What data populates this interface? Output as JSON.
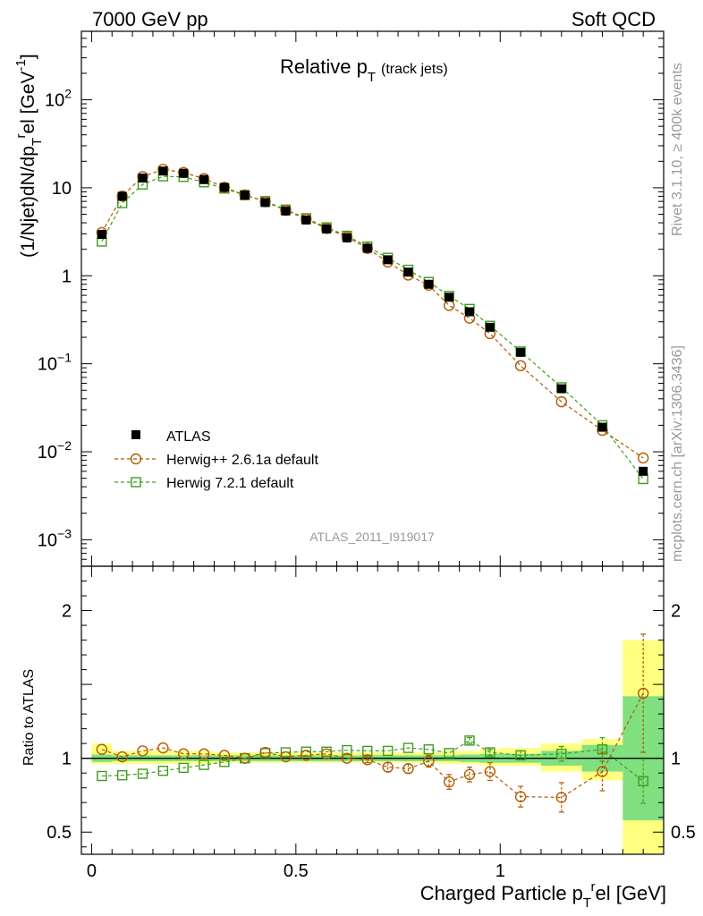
{
  "header": {
    "left": "7000 GeV pp",
    "right": "Soft QCD",
    "side_rivet": "Rivet 3.1.10, ≥ 400k events",
    "side_mcplots": "mcplots.cern.ch [arXiv:1306.3436]"
  },
  "chart_data": [
    {
      "type": "scatter",
      "title": "Relative p_T (track jets)",
      "title_main": "Relative p",
      "title_sub": "T",
      "title_suffix": "(track jets)",
      "analysis_id": "ATLAS_2011_I919017",
      "ylabel": "(1/Njet)dN/dp_T^rel [GeV^-1]",
      "ylabel_parts": {
        "a": "(1/Njet)dN/dp",
        "b": "T",
        "c": "r",
        "d": "el [GeV",
        "e": "-1",
        "f": "]"
      },
      "yscale": "log",
      "ylim": [
        0.0005,
        600
      ],
      "y_ticks": [
        {
          "value": 0.001,
          "base": "10",
          "exp": "−3"
        },
        {
          "value": 0.01,
          "base": "10",
          "exp": "−2"
        },
        {
          "value": 0.1,
          "base": "10",
          "exp": "−1"
        },
        {
          "value": 1,
          "base": "1",
          "exp": ""
        },
        {
          "value": 10,
          "base": "10",
          "exp": ""
        },
        {
          "value": 100,
          "base": "10",
          "exp": "2"
        }
      ],
      "xlim": [
        -0.025,
        1.4
      ],
      "x": [
        0.025,
        0.075,
        0.125,
        0.175,
        0.225,
        0.275,
        0.325,
        0.375,
        0.425,
        0.475,
        0.525,
        0.575,
        0.625,
        0.675,
        0.725,
        0.775,
        0.825,
        0.875,
        0.925,
        0.975,
        1.05,
        1.15,
        1.25,
        1.35
      ],
      "legend_position": "bottom-left",
      "series": [
        {
          "name": "ATLAS",
          "marker": "filled-square",
          "color": "#000000",
          "values": [
            2.95,
            8.0,
            12.9,
            15.5,
            14.6,
            12.4,
            10.1,
            8.25,
            6.8,
            5.45,
            4.3,
            3.4,
            2.7,
            2.05,
            1.52,
            1.1,
            0.8,
            0.57,
            0.39,
            0.26,
            0.135,
            0.052,
            0.019,
            0.006
          ]
        },
        {
          "name": "Herwig++ 2.6.1a default",
          "marker": "open-circle",
          "color": "#b35a00",
          "values": [
            3.1,
            8.05,
            13.4,
            16.2,
            14.9,
            12.7,
            10.1,
            8.3,
            6.95,
            5.55,
            4.4,
            3.45,
            2.75,
            2.05,
            1.43,
            1.02,
            0.78,
            0.46,
            0.33,
            0.22,
            0.095,
            0.037,
            0.0175,
            0.0085
          ]
        },
        {
          "name": "Herwig 7.2.1 default",
          "marker": "open-square",
          "color": "#3f9d1d",
          "values": [
            2.45,
            6.7,
            10.9,
            13.5,
            13.3,
            11.55,
            9.8,
            8.25,
            7.05,
            5.65,
            4.5,
            3.55,
            2.85,
            2.15,
            1.6,
            1.17,
            0.85,
            0.59,
            0.42,
            0.27,
            0.138,
            0.054,
            0.02,
            0.0049
          ]
        }
      ]
    },
    {
      "type": "scatter",
      "xlabel": "Charged Particle p_T^rel [GeV]",
      "xlabel_parts": {
        "a": "Charged Particle p",
        "b": "T",
        "c": "r",
        "d": "el [GeV]"
      },
      "ylabel": "Ratio to ATLAS",
      "ylim": [
        0.35,
        2.3
      ],
      "y_ticks": [
        "0.5",
        "1",
        "2"
      ],
      "x_ticks": [
        "0",
        "0.5",
        "1"
      ],
      "xlim": [
        -0.025,
        1.4
      ],
      "bins": [
        [
          0,
          0.05
        ],
        [
          0.05,
          0.1
        ],
        [
          0.1,
          0.15
        ],
        [
          0.15,
          0.2
        ],
        [
          0.2,
          0.25
        ],
        [
          0.25,
          0.3
        ],
        [
          0.3,
          0.35
        ],
        [
          0.35,
          0.4
        ],
        [
          0.4,
          0.45
        ],
        [
          0.45,
          0.5
        ],
        [
          0.5,
          0.55
        ],
        [
          0.55,
          0.6
        ],
        [
          0.6,
          0.65
        ],
        [
          0.65,
          0.7
        ],
        [
          0.7,
          0.75
        ],
        [
          0.75,
          0.8
        ],
        [
          0.8,
          0.85
        ],
        [
          0.85,
          0.9
        ],
        [
          0.9,
          0.95
        ],
        [
          0.95,
          1.0
        ],
        [
          1.0,
          1.1
        ],
        [
          1.1,
          1.2
        ],
        [
          1.2,
          1.3
        ],
        [
          1.3,
          1.4
        ]
      ],
      "band_green": [
        0.025,
        0.02,
        0.02,
        0.02,
        0.02,
        0.02,
        0.02,
        0.02,
        0.02,
        0.02,
        0.02,
        0.02,
        0.02,
        0.02,
        0.02,
        0.02,
        0.02,
        0.02,
        0.025,
        0.03,
        0.03,
        0.05,
        0.09,
        0.42
      ],
      "band_yellow": [
        0.1,
        0.05,
        0.05,
        0.05,
        0.05,
        0.05,
        0.04,
        0.04,
        0.04,
        0.04,
        0.04,
        0.04,
        0.04,
        0.04,
        0.04,
        0.04,
        0.04,
        0.05,
        0.05,
        0.06,
        0.07,
        0.1,
        0.13,
        0.8
      ],
      "band_yellow_low": [
        0.04,
        0.04,
        0.04,
        0.04,
        0.04,
        0.04,
        0.03,
        0.03,
        0.03,
        0.03,
        0.03,
        0.03,
        0.03,
        0.03,
        0.03,
        0.03,
        0.03,
        0.04,
        0.04,
        0.05,
        0.05,
        0.09,
        0.15,
        0.7
      ],
      "series": [
        {
          "name": "Herwig++ 2.6.1a default",
          "color": "#b35a00",
          "values": [
            1.06,
            1.01,
            1.05,
            1.07,
            1.03,
            1.03,
            1.02,
            1.0,
            1.04,
            1.01,
            1.02,
            1.03,
            1.0,
            0.99,
            0.94,
            0.93,
            0.98,
            0.84,
            0.89,
            0.91,
            0.74,
            0.735,
            0.91,
            1.44
          ],
          "err": [
            0.01,
            0.01,
            0.01,
            0.01,
            0.01,
            0.01,
            0.01,
            0.01,
            0.01,
            0.01,
            0.01,
            0.01,
            0.01,
            0.02,
            0.03,
            0.03,
            0.04,
            0.05,
            0.05,
            0.06,
            0.07,
            0.1,
            0.13,
            0.4
          ]
        },
        {
          "name": "Herwig 7.2.1 default",
          "color": "#3f9d1d",
          "values": [
            0.88,
            0.885,
            0.895,
            0.915,
            0.935,
            0.955,
            0.975,
            1.0,
            1.035,
            1.04,
            1.045,
            1.045,
            1.055,
            1.05,
            1.05,
            1.07,
            1.06,
            1.035,
            1.12,
            1.04,
            1.02,
            1.03,
            1.06,
            0.845
          ],
          "err": [
            0.01,
            0.01,
            0.01,
            0.01,
            0.01,
            0.01,
            0.01,
            0.01,
            0.01,
            0.01,
            0.01,
            0.01,
            0.01,
            0.01,
            0.01,
            0.01,
            0.015,
            0.015,
            0.02,
            0.02,
            0.03,
            0.05,
            0.08,
            0.15
          ]
        }
      ]
    }
  ]
}
